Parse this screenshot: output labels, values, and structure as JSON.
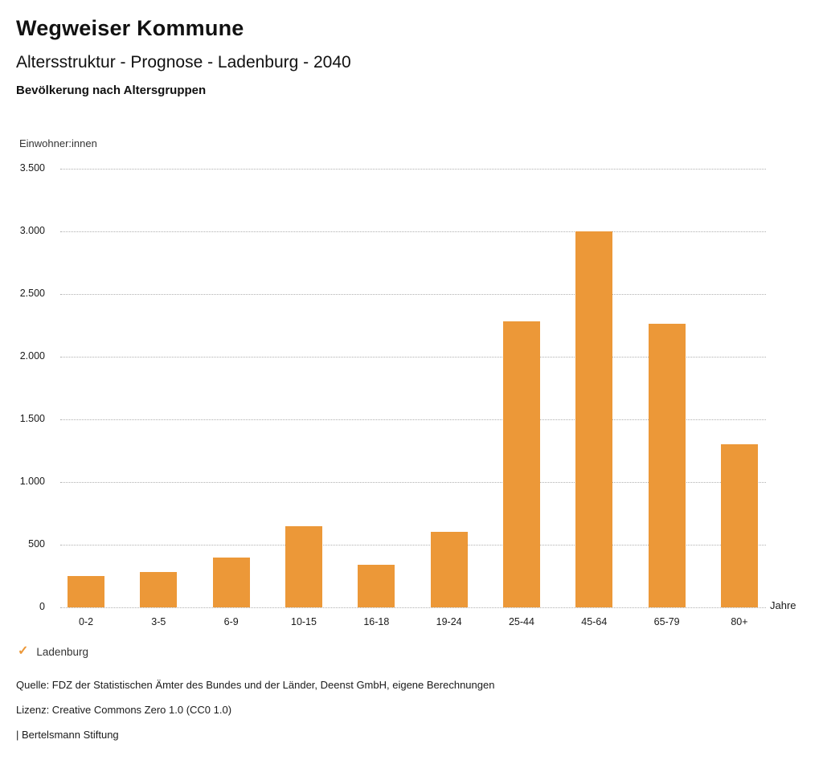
{
  "header": {
    "title": "Wegweiser Kommune",
    "subtitle": "Altersstruktur - Prognose - Ladenburg - 2040",
    "chart_subtitle": "Bevölkerung nach Altersgruppen"
  },
  "chart_data": {
    "type": "bar",
    "title": "Bevölkerung nach Altersgruppen",
    "categories": [
      "0-2",
      "3-5",
      "6-9",
      "10-15",
      "16-18",
      "19-24",
      "25-44",
      "45-64",
      "65-79",
      "80+"
    ],
    "values": [
      250,
      280,
      400,
      650,
      340,
      600,
      2280,
      3000,
      2260,
      1300
    ],
    "series_name": "Ladenburg",
    "ylabel": "Einwohner:innen",
    "xlabel": "Jahre",
    "ylim": [
      0,
      3500
    ],
    "yticks": [
      0,
      500,
      1000,
      1500,
      2000,
      2500,
      3000,
      3500
    ],
    "ytick_labels": [
      "0",
      "500",
      "1.000",
      "1.500",
      "2.000",
      "2.500",
      "3.000",
      "3.500"
    ],
    "grid": "horizontal-dotted",
    "legend_position": "bottom-left",
    "bar_color": "#EC9838"
  },
  "legend": {
    "check_icon": "✓",
    "label": "Ladenburg"
  },
  "footer": {
    "source": "Quelle: FDZ der Statistischen Ämter des Bundes und der Länder, Deenst GmbH, eigene Berechnungen",
    "license": "Lizenz: Creative Commons Zero 1.0 (CC0 1.0)",
    "attribution": "| Bertelsmann Stiftung"
  }
}
